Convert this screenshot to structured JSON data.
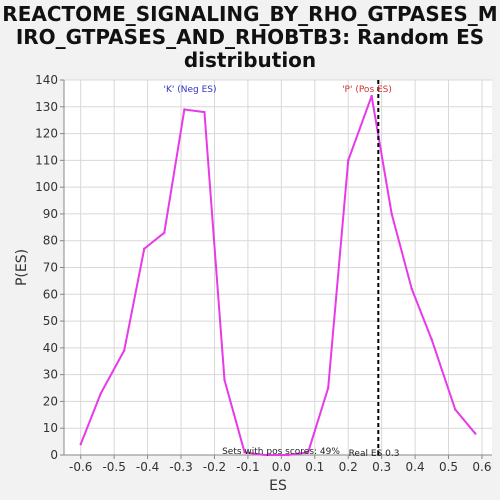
{
  "chart_data": {
    "type": "line",
    "title": [
      "REACTOME_SIGNALING_BY_RHO_GTPASES_M",
      "IRO_GTPASES_AND_RHOBTB3: Random ES",
      "distribution"
    ],
    "xlabel": "ES",
    "ylabel": "P(ES)",
    "xlim": [
      -0.65,
      0.63
    ],
    "ylim": [
      0,
      140
    ],
    "xticks": [
      -0.6,
      -0.5,
      -0.4,
      -0.3,
      -0.2,
      -0.1,
      0.0,
      0.1,
      0.2,
      0.3,
      0.4,
      0.5,
      0.6
    ],
    "xtick_labels": [
      "-0.6",
      "-0.5",
      "-0.4",
      "-0.3",
      "-0.2",
      "-0.1",
      "0.0",
      "0.1",
      "0.2",
      "0.3",
      "0.4",
      "0.5",
      "0.6"
    ],
    "yticks": [
      0,
      10,
      20,
      30,
      40,
      50,
      60,
      70,
      80,
      90,
      100,
      110,
      120,
      130,
      140
    ],
    "ytick_labels": [
      "0",
      "10",
      "20",
      "30",
      "40",
      "50",
      "60",
      "70",
      "80",
      "90",
      "100",
      "110",
      "120",
      "130",
      "140"
    ],
    "grid": true,
    "series": [
      {
        "color": "#e83ae8",
        "x": [
          -0.6,
          -0.54,
          -0.47,
          -0.41,
          -0.35,
          -0.29,
          -0.23,
          -0.17,
          -0.11,
          -0.05,
          0.02,
          0.08,
          0.14,
          0.2,
          0.27,
          0.33,
          0.39,
          0.45,
          0.52,
          0.58
        ],
        "y": [
          4,
          23,
          39,
          77,
          83,
          129,
          128,
          28,
          1,
          0,
          0,
          1,
          25,
          110,
          134,
          90,
          62,
          43,
          17,
          8
        ]
      }
    ],
    "real_es": 0.29,
    "annotations": {
      "neg_label": "'K' (Neg ES)",
      "neg_color": "#3333cc",
      "pos_label": "'P' (Pos ES)",
      "pos_color": "#cc3333",
      "pos_scores_text": "Sets with pos scores: 49%",
      "real_es_text": "Real ES 0.3"
    }
  }
}
